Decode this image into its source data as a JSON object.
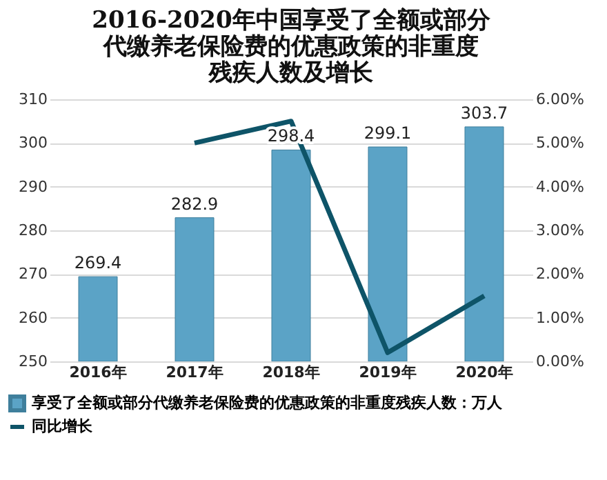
{
  "chart_data": {
    "type": "bar",
    "title": "2016-2020年中国享受了全额或部分代缴养老保险费的优惠政策的非重度残疾人数及增长",
    "categories": [
      "2016年",
      "2017年",
      "2018年",
      "2019年",
      "2020年"
    ],
    "series": [
      {
        "name": "享受了全额或部分代缴养老保险费的优惠政策的非重度残疾人数：万人",
        "color": "#5ba3c6",
        "values": [
          269.4,
          282.9,
          298.4,
          299.1,
          303.7
        ],
        "value_labels": [
          "269.4",
          "282.9",
          "298.4",
          "299.1",
          "303.7"
        ]
      },
      {
        "name": "同比增长",
        "type": "line",
        "axis": "y2",
        "color": "#0e5468",
        "values": [
          null,
          5.0,
          5.5,
          0.2,
          1.5
        ]
      }
    ],
    "ylim": [
      250,
      310
    ],
    "yticks": [
      250,
      260,
      270,
      280,
      290,
      300,
      310
    ],
    "y2lim": [
      0,
      6
    ],
    "y2ticks": [
      {
        "value": 0,
        "label": "0.00%"
      },
      {
        "value": 1,
        "label": "1.00%"
      },
      {
        "value": 2,
        "label": "2.00%"
      },
      {
        "value": 3,
        "label": "3.00%"
      },
      {
        "value": 4,
        "label": "4.00%"
      },
      {
        "value": 5,
        "label": "5.00%"
      },
      {
        "value": 6,
        "label": "6.00%"
      }
    ],
    "grid": "y",
    "legend": "bottom"
  }
}
